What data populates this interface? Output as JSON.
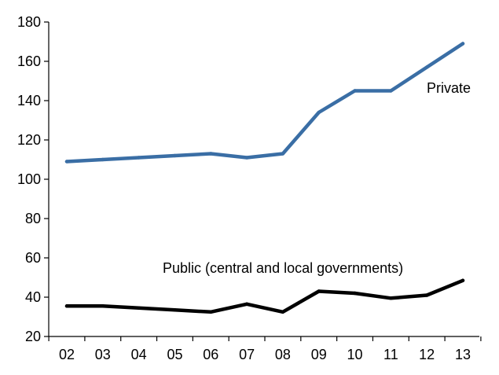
{
  "chart_data": {
    "type": "line",
    "title": "",
    "xlabel": "",
    "ylabel": "",
    "categories": [
      "02",
      "03",
      "04",
      "05",
      "06",
      "07",
      "08",
      "09",
      "10",
      "11",
      "12",
      "13"
    ],
    "ylim": [
      20,
      180
    ],
    "yticks": [
      20,
      40,
      60,
      80,
      100,
      120,
      140,
      160,
      180
    ],
    "grid": false,
    "legend": "inline labels",
    "series": [
      {
        "name": "Private",
        "color": "#3a6ea5",
        "values": [
          109,
          110,
          111,
          112,
          113,
          111,
          113,
          134,
          145,
          145,
          157,
          169
        ]
      },
      {
        "name": "Public (central and local governments)",
        "color": "#000000",
        "values": [
          35.5,
          35.5,
          34.5,
          33.5,
          32.5,
          36.5,
          32.5,
          43,
          42,
          39.5,
          41,
          48.5
        ]
      }
    ]
  }
}
